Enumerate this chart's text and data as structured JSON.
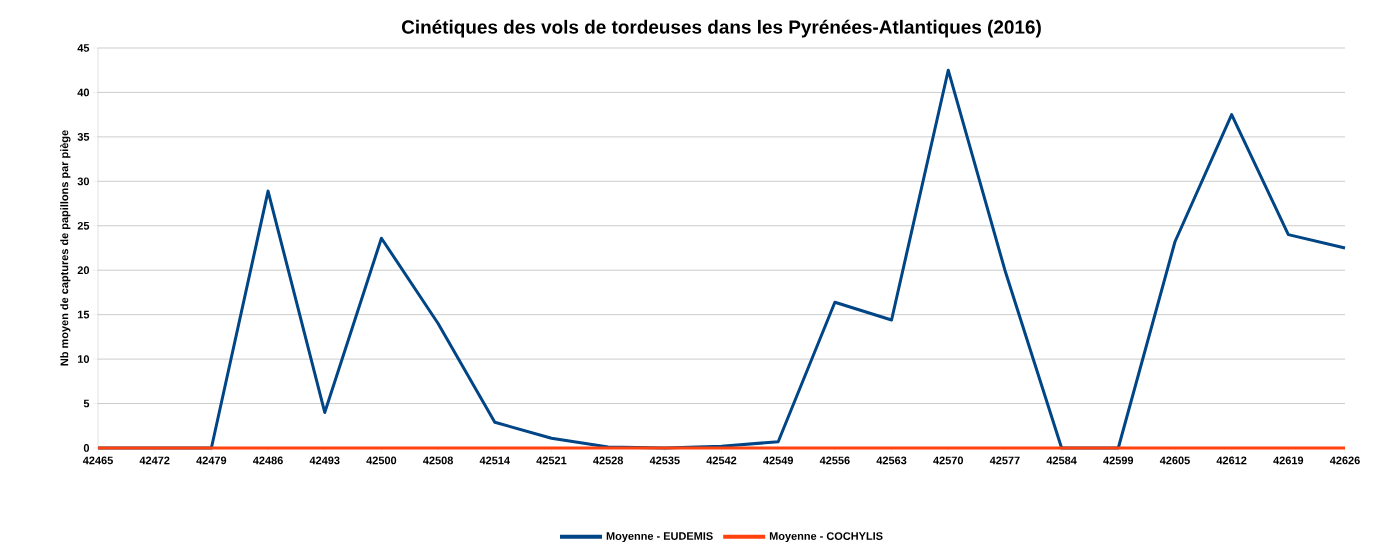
{
  "chart_data": {
    "type": "line",
    "title": "Cinétiques des vols de tordeuses dans les Pyrénées-Atlantiques (2016)",
    "ylabel": "Nb moyen de captures de papillons par piège",
    "categories": [
      "42465",
      "42472",
      "42479",
      "42486",
      "42493",
      "42500",
      "42508",
      "42514",
      "42521",
      "42528",
      "42535",
      "42542",
      "42549",
      "42556",
      "42563",
      "42570",
      "42577",
      "42584",
      "42599",
      "42605",
      "42612",
      "42619",
      "42626"
    ],
    "series": [
      {
        "name": "Moyenne - EUDEMIS",
        "color": "#004586",
        "values": [
          0,
          0,
          0,
          28.9,
          4,
          23.6,
          14,
          2.9,
          1.1,
          0.1,
          0,
          0.2,
          0.7,
          16.4,
          14.4,
          42.5,
          20,
          0,
          0,
          23.2,
          37.5,
          24,
          22.5
        ]
      },
      {
        "name": "Moyenne - COCHYLIS",
        "color": "#ff420e",
        "values": [
          0,
          0,
          0,
          0,
          0,
          0,
          0,
          0,
          0,
          0,
          0,
          0,
          0,
          0,
          0,
          0,
          0,
          0,
          0,
          0,
          0,
          0,
          0
        ]
      }
    ],
    "ylim": [
      0,
      45
    ],
    "yticks": [
      0,
      5,
      10,
      15,
      20,
      25,
      30,
      35,
      40,
      45
    ],
    "grid": "y",
    "legend": "bottom",
    "marker": "none",
    "line_style": "solid"
  }
}
